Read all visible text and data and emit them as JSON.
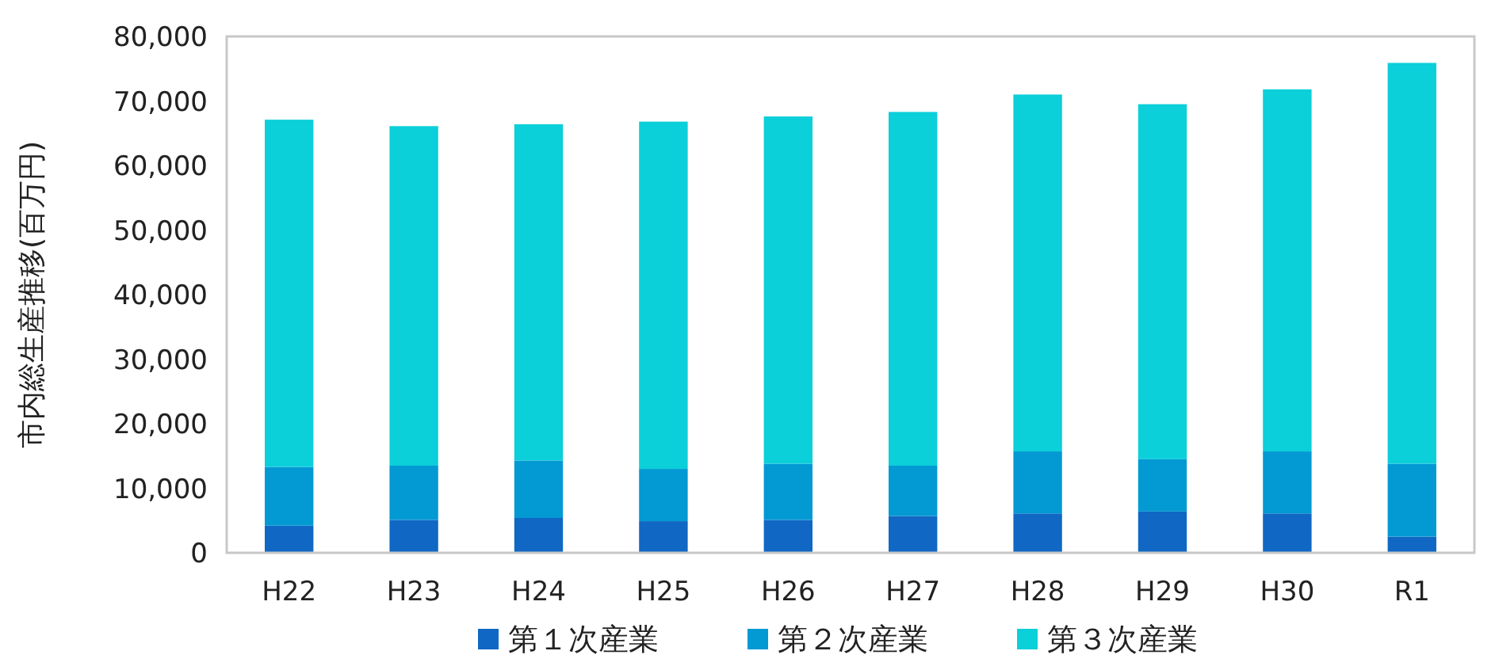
{
  "chart_data": {
    "type": "bar",
    "stacked": true,
    "ylabel": "市内総生産推移(百万円)",
    "categories": [
      "H22",
      "H23",
      "H24",
      "H25",
      "H26",
      "H27",
      "H28",
      "H29",
      "H30",
      "R1"
    ],
    "series": [
      {
        "name": "第１次産業",
        "color": "#1068c4",
        "values": [
          4200,
          5100,
          5400,
          4900,
          5100,
          5700,
          6100,
          6400,
          6100,
          2500
        ]
      },
      {
        "name": "第２次産業",
        "color": "#0399d3",
        "values": [
          9100,
          8400,
          8900,
          8100,
          8700,
          7800,
          9600,
          8100,
          9600,
          11300
        ]
      },
      {
        "name": "第３次産業",
        "color": "#0bcfd9",
        "values": [
          53800,
          52600,
          52100,
          53800,
          53800,
          54800,
          55300,
          55000,
          56100,
          62100
        ]
      }
    ],
    "ylim": [
      0,
      80000
    ],
    "yticks": [
      0,
      {
        "value": 10000,
        "label": "10,000"
      },
      {
        "value": 20000,
        "label": "20,000"
      },
      {
        "value": 30000,
        "label": "30,000"
      },
      {
        "value": 40000,
        "label": "40,000"
      },
      {
        "value": 50000,
        "label": "50,000"
      },
      {
        "value": 60000,
        "label": "60,000"
      },
      {
        "value": 70000,
        "label": "70,000"
      },
      {
        "value": 80000,
        "label": "80,000"
      }
    ],
    "legend": "bottom"
  }
}
